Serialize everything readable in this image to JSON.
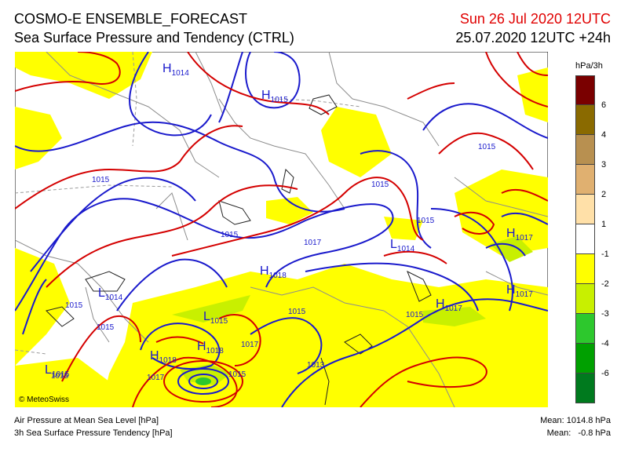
{
  "header": {
    "title": "COSMO-E ENSEMBLE_FORECAST",
    "subtitle": "Sea Surface Pressure and Tendency (CTRL)",
    "valid_time": "Sun 26 Jul 2020 12UTC",
    "run_info": "25.07.2020 12UTC +24h"
  },
  "colors": {
    "valid_time": "#e00000",
    "isobar_low": "#1a1acc",
    "isobar_high": "#d40000",
    "tendency_minus1_2": "#ffff00",
    "tendency_minus2_3": "#c8f000",
    "tendency_minus3_4": "#2dc82d",
    "tendency_minus4_6": "#00a000",
    "tendency_below_minus6": "#007a1e"
  },
  "legend": {
    "unit": "hPa/3h",
    "bins": [
      {
        "color": "#7a0000",
        "label": "6"
      },
      {
        "color": "#8a6a00",
        "label": "4"
      },
      {
        "color": "#b89050",
        "label": "3"
      },
      {
        "color": "#e0b070",
        "label": "2"
      },
      {
        "color": "#ffe0a8",
        "label": "1"
      },
      {
        "color": "#ffffff",
        "label": "-1"
      },
      {
        "color": "#ffff00",
        "label": "-2"
      },
      {
        "color": "#c8f000",
        "label": "-3"
      },
      {
        "color": "#2dc82d",
        "label": "-4"
      },
      {
        "color": "#00a000",
        "label": "-6"
      },
      {
        "color": "#007a1e",
        "label": ""
      }
    ]
  },
  "map": {
    "copyright": "© MeteoSwiss",
    "pressure_centers": [
      {
        "type": "H",
        "value": "1014"
      },
      {
        "type": "H",
        "value": "1015"
      },
      {
        "type": "H",
        "value": "1018"
      },
      {
        "type": "H",
        "value": "1017"
      },
      {
        "type": "H",
        "value": "1017"
      },
      {
        "type": "H",
        "value": "1017"
      },
      {
        "type": "H",
        "value": "1018"
      },
      {
        "type": "H",
        "value": "1018"
      },
      {
        "type": "L",
        "value": "1014"
      },
      {
        "type": "L",
        "value": "1014"
      },
      {
        "type": "L",
        "value": "1015"
      },
      {
        "type": "L",
        "value": "1015"
      }
    ],
    "isobar_labels": [
      "1015",
      "1015",
      "1015",
      "1015",
      "1015",
      "1015",
      "1015",
      "1015",
      "1015",
      "1015",
      "1017",
      "1017",
      "1017",
      "1015",
      "1013"
    ]
  },
  "footer": {
    "line1": "Air Pressure at Mean Sea Level [hPa]",
    "line2": "3h Sea Surface Pressure Tendency [hPa]",
    "mean1": "Mean: 1014.8 hPa",
    "mean2": "Mean:   -0.8 hPa"
  }
}
